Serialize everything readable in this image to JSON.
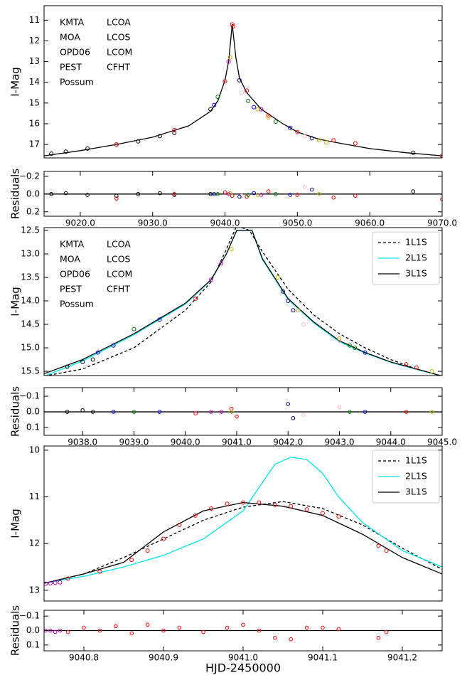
{
  "chart_data": [
    {
      "type": "scatter",
      "ylabel": "I-Mag",
      "xlim": [
        9015,
        9070
      ],
      "ylim": [
        17.65,
        10.3
      ],
      "yticks": [
        11,
        12,
        13,
        14,
        15,
        16,
        17
      ],
      "legend": "upper left",
      "series": [
        {
          "name": "KMTA",
          "color": "#000000",
          "x": [
            9016,
            9018,
            9021,
            9025,
            9028,
            9031,
            9033,
            9038,
            9066
          ],
          "y": [
            17.45,
            17.35,
            17.2,
            17.0,
            16.85,
            16.6,
            16.45,
            15.3,
            17.4
          ]
        },
        {
          "name": "MOA",
          "color": "#ff0000",
          "x": [
            9025,
            9033,
            9040,
            9041,
            9041.1,
            9043,
            9046,
            9050,
            9055,
            9058,
            9070
          ],
          "y": [
            17.0,
            16.3,
            13.95,
            11.2,
            11.3,
            14.4,
            15.6,
            16.4,
            16.8,
            16.95,
            17.55
          ]
        },
        {
          "name": "OPD06",
          "color": "#c000c0",
          "x": [
            9040.5,
            9045
          ],
          "y": [
            13.0,
            15.3
          ]
        },
        {
          "name": "PEST",
          "color": "#ffb6c1",
          "x": [
            9042.3,
            9051
          ],
          "y": [
            14.5,
            16.6
          ]
        },
        {
          "name": "Possum",
          "color": "#000080",
          "x": [
            9042,
            9052
          ],
          "y": [
            13.9,
            16.7
          ]
        },
        {
          "name": "LCOA",
          "color": "#008000",
          "x": [
            9039,
            9043.2,
            9047
          ],
          "y": [
            14.7,
            14.9,
            15.9
          ]
        },
        {
          "name": "LCOS",
          "color": "#0000ff",
          "x": [
            9038.5,
            9044,
            9049
          ],
          "y": [
            15.1,
            15.2,
            16.2
          ]
        },
        {
          "name": "LCOM",
          "color": "#bdb400",
          "x": [
            9040.7,
            9044.5,
            9053
          ],
          "y": [
            12.8,
            15.3,
            16.8
          ]
        },
        {
          "name": "CFHT",
          "color": "#daa520",
          "x": [
            9046,
            9054
          ],
          "y": [
            15.7,
            16.9
          ]
        }
      ],
      "models": [
        {
          "color": "#000000",
          "dash": false,
          "x": [
            9015,
            9020,
            9025,
            9030,
            9035,
            9038,
            9039,
            9040,
            9040.5,
            9041,
            9041.5,
            9042,
            9043,
            9045,
            9048,
            9050,
            9053,
            9056,
            9060,
            9065,
            9070
          ],
          "y": [
            17.55,
            17.3,
            17.0,
            16.65,
            16.1,
            15.4,
            14.9,
            13.9,
            13.0,
            11.2,
            12.8,
            13.8,
            14.5,
            15.3,
            16.0,
            16.4,
            16.75,
            16.95,
            17.2,
            17.4,
            17.55
          ]
        }
      ]
    },
    {
      "type": "residual",
      "ylabel": "Residuals",
      "xlim": [
        9015,
        9070
      ],
      "ylim": [
        0.25,
        -0.255
      ],
      "yticks": [
        {
          "value": -0.2,
          "label": "−0.2"
        },
        {
          "value": 0,
          "label": "0.0"
        },
        0.2
      ],
      "xticks": [
        {
          "value": 9020,
          "label": "9020.0"
        },
        {
          "value": 9030,
          "label": "9030.0"
        },
        {
          "value": 9040,
          "label": "9040.0"
        },
        {
          "value": 9050,
          "label": "9050.0"
        },
        {
          "value": 9060,
          "label": "9060.0"
        },
        {
          "value": 9070,
          "label": "9070.0"
        }
      ],
      "series": [
        {
          "color": "#000000",
          "x": [
            9016,
            9018,
            9021,
            9025,
            9028,
            9031,
            9033,
            9038,
            9066
          ],
          "values": [
            0.0,
            -0.01,
            0.01,
            0.02,
            0.0,
            -0.01,
            0.01,
            0.0,
            -0.03
          ]
        },
        {
          "color": "#ff0000",
          "x": [
            9025,
            9033,
            9040,
            9041,
            9043,
            9046,
            9050,
            9055,
            9058,
            9070
          ],
          "values": [
            0.05,
            0.0,
            -0.02,
            0.02,
            0.03,
            -0.03,
            0.01,
            0.04,
            0.02,
            0.06
          ]
        },
        {
          "color": "#c000c0",
          "x": [
            9040.5,
            9045
          ],
          "values": [
            0.0,
            0.01
          ]
        },
        {
          "color": "#ffb6c1",
          "x": [
            9042.3,
            9051
          ],
          "values": [
            0.02,
            -0.08
          ]
        },
        {
          "color": "#000080",
          "x": [
            9042,
            9052
          ],
          "values": [
            0.03,
            -0.05
          ]
        },
        {
          "color": "#008000",
          "x": [
            9039,
            9043.2,
            9047
          ],
          "values": [
            0.0,
            0.01,
            0.0
          ]
        },
        {
          "color": "#0000ff",
          "x": [
            9038.5,
            9044,
            9049
          ],
          "values": [
            0.0,
            -0.01,
            0.01
          ]
        },
        {
          "color": "#bdb400",
          "x": [
            9040.7,
            9044.5,
            9053
          ],
          "values": [
            -0.01,
            0.01,
            0.0
          ]
        }
      ]
    },
    {
      "type": "scatter",
      "ylabel": "I-Mag",
      "xlim": [
        9037.25,
        9045
      ],
      "ylim": [
        15.59,
        12.44
      ],
      "yticks": [
        12.5,
        {
          "value": 13,
          "label": "13.0"
        },
        13.5,
        {
          "value": 14,
          "label": "14.0"
        },
        14.5,
        {
          "value": 15,
          "label": "15.0"
        },
        15.5
      ],
      "legend": "upper left",
      "series": [
        {
          "name": "KMTA",
          "color": "#000000",
          "x": [
            9037.7,
            9038,
            9038.2
          ],
          "y": [
            15.4,
            15.3,
            15.25
          ]
        },
        {
          "name": "MOA",
          "color": "#ff0000",
          "x": [
            9040.2,
            9044.3,
            9044.5
          ],
          "y": [
            13.95,
            15.35,
            15.42
          ]
        },
        {
          "name": "OPD06",
          "color": "#c000c0",
          "x": [
            9040.5,
            9040.7
          ],
          "y": [
            13.55,
            13.2
          ]
        },
        {
          "name": "PEST",
          "color": "#ffb6c1",
          "x": [
            9042.3,
            9043
          ],
          "y": [
            14.5,
            14.85
          ]
        },
        {
          "name": "Possum",
          "color": "#000080",
          "x": [
            9041.9,
            9042,
            9042.1
          ],
          "y": [
            13.8,
            14.0,
            14.2
          ]
        },
        {
          "name": "LCOA",
          "color": "#008000",
          "x": [
            9039,
            9043.2,
            9043.3
          ],
          "y": [
            14.6,
            14.95,
            15.0
          ]
        },
        {
          "name": "LCOS",
          "color": "#0000ff",
          "x": [
            9038.3,
            9038.6,
            9039.5,
            9043.5
          ],
          "y": [
            15.1,
            14.95,
            14.4,
            15.1
          ]
        },
        {
          "name": "LCOM",
          "color": "#bdb400",
          "x": [
            9040.9,
            9041.8,
            9044.8
          ],
          "y": [
            12.9,
            13.5,
            15.5
          ]
        },
        {
          "name": "CFHT",
          "color": "#daa520",
          "x": [
            9042.2,
            9043
          ],
          "y": [
            14.2,
            14.8
          ]
        }
      ],
      "models": [
        {
          "name": "1L1S",
          "color": "#000000",
          "dash": true,
          "x": [
            9037.25,
            9038,
            9039,
            9040,
            9040.5,
            9040.8,
            9041,
            9041.25,
            9041.5,
            9042,
            9042.5,
            9043,
            9043.5,
            9044,
            9044.5,
            9045
          ],
          "y": [
            15.6,
            15.45,
            15.0,
            14.2,
            13.6,
            12.9,
            12.4,
            12.5,
            12.95,
            13.75,
            14.3,
            14.7,
            15.0,
            15.25,
            15.45,
            15.6
          ]
        },
        {
          "name": "2L1S",
          "color": "#00e5ee",
          "dash": false,
          "x": [
            9037.25,
            9038,
            9039,
            9040,
            9040.5,
            9040.8,
            9041,
            9041.3,
            9041.5,
            9042,
            9042.5,
            9043,
            9043.5,
            9044,
            9044.5,
            9045
          ],
          "y": [
            15.6,
            15.28,
            14.72,
            14.07,
            13.56,
            13.0,
            12.5,
            12.5,
            13.12,
            13.97,
            14.47,
            14.87,
            15.11,
            15.31,
            15.46,
            15.6
          ]
        },
        {
          "name": "3L1S",
          "color": "#000000",
          "dash": false,
          "x": [
            9037.25,
            9038,
            9039,
            9040,
            9040.5,
            9040.8,
            9041,
            9041.3,
            9041.5,
            9042,
            9042.5,
            9043,
            9043.5,
            9044,
            9044.5,
            9045
          ],
          "y": [
            15.55,
            15.25,
            14.7,
            14.05,
            13.55,
            13.0,
            12.5,
            12.5,
            13.1,
            13.95,
            14.45,
            14.85,
            15.1,
            15.3,
            15.45,
            15.6
          ]
        }
      ]
    },
    {
      "type": "residual",
      "ylabel": "Residuals",
      "xlim": [
        9037.25,
        9045
      ],
      "ylim": [
        0.15,
        -0.155
      ],
      "yticks": [
        {
          "value": -0.1,
          "label": "−0.1"
        },
        {
          "value": 0,
          "label": "0.0"
        },
        0.1
      ],
      "xticks": [
        {
          "value": 9038,
          "label": "9038.0"
        },
        {
          "value": 9039,
          "label": "9039.0"
        },
        {
          "value": 9040,
          "label": "9040.0"
        },
        {
          "value": 9041,
          "label": "9041.0"
        },
        {
          "value": 9042,
          "label": "9042.0"
        },
        {
          "value": 9043,
          "label": "9043.0"
        },
        {
          "value": 9044,
          "label": "9044.0"
        },
        {
          "value": 9045,
          "label": "9045.0"
        }
      ],
      "series": [
        {
          "color": "#000000",
          "x": [
            9037.7,
            9038,
            9038.2
          ],
          "values": [
            0.0,
            -0.01,
            0.0
          ]
        },
        {
          "color": "#ff0000",
          "x": [
            9040.2,
            9040.9,
            9041,
            9044.3
          ],
          "values": [
            0.01,
            -0.02,
            0.03,
            0.0
          ]
        },
        {
          "color": "#c000c0",
          "x": [
            9040.5,
            9040.7
          ],
          "values": [
            0.0,
            0.0
          ]
        },
        {
          "color": "#ffb6c1",
          "x": [
            9042.3,
            9043
          ],
          "values": [
            0.02,
            -0.03
          ]
        },
        {
          "color": "#000080",
          "x": [
            9042,
            9042.1
          ],
          "values": [
            -0.05,
            0.04
          ]
        },
        {
          "color": "#008000",
          "x": [
            9039,
            9043.2
          ],
          "values": [
            0.0,
            0.0
          ]
        },
        {
          "color": "#0000ff",
          "x": [
            9038.6,
            9039.5,
            9043.5
          ],
          "values": [
            0.0,
            0.0,
            0.0
          ]
        },
        {
          "color": "#bdb400",
          "x": [
            9040.9,
            9044.8
          ],
          "values": [
            0.0,
            0.0
          ]
        }
      ]
    },
    {
      "type": "scatter",
      "ylabel": "I-Mag",
      "xlim": [
        9040.75,
        9041.25
      ],
      "ylim": [
        13.23,
        9.91
      ],
      "yticks": [
        10,
        11,
        12,
        13
      ],
      "series": [
        {
          "color": "#ff0000",
          "x": [
            9040.78,
            9040.82,
            9040.86,
            9040.88,
            9040.9,
            9040.92,
            9040.94,
            9040.96,
            9040.98,
            9041,
            9041.02,
            9041.04,
            9041.06,
            9041.08,
            9041.1,
            9041.12,
            9041.17,
            9041.18
          ],
          "y": [
            12.75,
            12.6,
            12.35,
            12.15,
            11.9,
            11.6,
            11.4,
            11.25,
            11.15,
            11.12,
            11.12,
            11.17,
            11.2,
            11.27,
            11.35,
            11.42,
            12.05,
            12.15
          ]
        },
        {
          "color": "#c000c0",
          "x": [
            9040.752,
            9040.758,
            9040.764,
            9040.77
          ],
          "y": [
            12.86,
            12.85,
            12.84,
            12.83
          ]
        }
      ],
      "models": [
        {
          "name": "1L1S",
          "color": "#000000",
          "dash": true,
          "x": [
            9040.75,
            9040.8,
            9040.85,
            9040.9,
            9040.95,
            9041,
            9041.05,
            9041.1,
            9041.15,
            9041.2,
            9041.25
          ],
          "y": [
            12.85,
            12.65,
            12.3,
            11.9,
            11.5,
            11.22,
            11.1,
            11.25,
            11.6,
            12.1,
            12.55
          ]
        },
        {
          "name": "2L1S",
          "color": "#00e5ee",
          "dash": false,
          "x": [
            9040.75,
            9040.8,
            9040.85,
            9040.9,
            9040.95,
            9041,
            9041.02,
            9041.04,
            9041.06,
            9041.08,
            9041.1,
            9041.12,
            9041.15,
            9041.2,
            9041.25
          ],
          "y": [
            12.85,
            12.7,
            12.5,
            12.25,
            11.9,
            11.3,
            10.8,
            10.3,
            10.15,
            10.2,
            10.5,
            11.0,
            11.55,
            12.15,
            12.5
          ]
        },
        {
          "name": "3L1S",
          "color": "#000000",
          "dash": false,
          "x": [
            9040.75,
            9040.8,
            9040.85,
            9040.9,
            9040.95,
            9041,
            9041.05,
            9041.1,
            9041.15,
            9041.2,
            9041.25
          ],
          "y": [
            12.85,
            12.65,
            12.4,
            11.75,
            11.3,
            11.12,
            11.2,
            11.4,
            11.8,
            12.3,
            12.65
          ]
        }
      ]
    },
    {
      "type": "residual",
      "ylabel": "Residuals",
      "xlabel": "HJD-2450000",
      "xlim": [
        9040.75,
        9041.25
      ],
      "ylim": [
        0.14,
        -0.14
      ],
      "yticks": [
        {
          "value": -0.1,
          "label": "−0.1"
        },
        {
          "value": 0,
          "label": "0.0"
        },
        0.1
      ],
      "xticks": [
        9040.8,
        9040.9,
        {
          "value": 9041,
          "label": "9041.0"
        },
        9041.1,
        9041.2
      ],
      "series": [
        {
          "color": "#ff0000",
          "x": [
            9040.78,
            9040.8,
            9040.82,
            9040.84,
            9040.86,
            9040.88,
            9040.9,
            9040.92,
            9040.95,
            9040.98,
            9041,
            9041.02,
            9041.04,
            9041.06,
            9041.08,
            9041.1,
            9041.12,
            9041.17,
            9041.18
          ],
          "values": [
            0.01,
            -0.02,
            0.0,
            -0.03,
            0.02,
            -0.04,
            0.0,
            -0.02,
            0.01,
            -0.02,
            -0.04,
            0.0,
            0.05,
            0.06,
            -0.02,
            -0.02,
            -0.01,
            0.05,
            0.01
          ]
        },
        {
          "color": "#c000c0",
          "x": [
            9040.752,
            9040.758,
            9040.764,
            9040.77
          ],
          "values": [
            0.0,
            0.0,
            0.01,
            0.0
          ]
        }
      ]
    }
  ]
}
